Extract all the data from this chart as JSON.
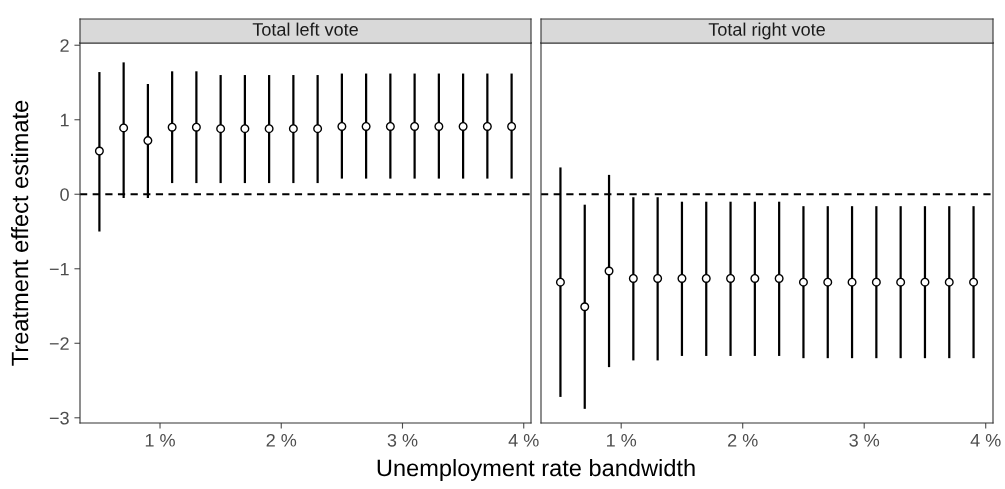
{
  "chart_data": [
    {
      "type": "scatter",
      "title": "Total left vote",
      "ylabel": "Treatment effect estimate",
      "xlabel": "Unemployment rate bandwidth",
      "x": [
        0.5,
        0.7,
        0.9,
        1.1,
        1.3,
        1.5,
        1.7,
        1.9,
        2.1,
        2.3,
        2.5,
        2.7,
        2.9,
        3.1,
        3.3,
        3.5,
        3.7,
        3.9
      ],
      "values": [
        0.58,
        0.89,
        0.72,
        0.9,
        0.9,
        0.88,
        0.88,
        0.88,
        0.88,
        0.88,
        0.91,
        0.91,
        0.91,
        0.91,
        0.91,
        0.91,
        0.91,
        0.91
      ],
      "errors": [
        [
          -0.5,
          1.64
        ],
        [
          -0.05,
          1.77
        ],
        [
          -0.05,
          1.48
        ],
        [
          0.15,
          1.65
        ],
        [
          0.15,
          1.65
        ],
        [
          0.15,
          1.6
        ],
        [
          0.15,
          1.6
        ],
        [
          0.15,
          1.6
        ],
        [
          0.15,
          1.6
        ],
        [
          0.15,
          1.6
        ],
        [
          0.21,
          1.62
        ],
        [
          0.21,
          1.62
        ],
        [
          0.21,
          1.62
        ],
        [
          0.21,
          1.62
        ],
        [
          0.21,
          1.62
        ],
        [
          0.21,
          1.62
        ],
        [
          0.21,
          1.62
        ],
        [
          0.21,
          1.62
        ]
      ],
      "color": "#000000",
      "marker": "circle",
      "xlim": [
        0.34,
        4.06
      ],
      "xticks": [
        {
          "value": 1,
          "label": "1 %"
        },
        {
          "value": 2,
          "label": "2 %"
        },
        {
          "value": 3,
          "label": "3 %"
        },
        {
          "value": 4,
          "label": "4 %"
        }
      ],
      "ylim": [
        -3.07,
        2.03
      ],
      "yticks": [
        {
          "value": -3,
          "label": "−3"
        },
        {
          "value": -2,
          "label": "−2"
        },
        {
          "value": -1,
          "label": "−1"
        },
        0,
        1,
        2
      ],
      "ref_lines": [
        {
          "axis": "y",
          "value": 0,
          "line_style": "dashed",
          "color": "#000000"
        }
      ],
      "grid": false
    },
    {
      "type": "scatter",
      "title": "Total right vote",
      "x": [
        0.5,
        0.7,
        0.9,
        1.1,
        1.3,
        1.5,
        1.7,
        1.9,
        2.1,
        2.3,
        2.5,
        2.7,
        2.9,
        3.1,
        3.3,
        3.5,
        3.7,
        3.9
      ],
      "values": [
        -1.18,
        -1.51,
        -1.03,
        -1.13,
        -1.13,
        -1.13,
        -1.13,
        -1.13,
        -1.13,
        -1.13,
        -1.18,
        -1.18,
        -1.18,
        -1.18,
        -1.18,
        -1.18,
        -1.18,
        -1.18
      ],
      "errors": [
        [
          -2.72,
          0.36
        ],
        [
          -2.88,
          -0.14
        ],
        [
          -2.32,
          0.26
        ],
        [
          -2.23,
          -0.04
        ],
        [
          -2.23,
          -0.04
        ],
        [
          -2.17,
          -0.1
        ],
        [
          -2.17,
          -0.1
        ],
        [
          -2.17,
          -0.1
        ],
        [
          -2.17,
          -0.1
        ],
        [
          -2.17,
          -0.1
        ],
        [
          -2.2,
          -0.16
        ],
        [
          -2.2,
          -0.16
        ],
        [
          -2.2,
          -0.16
        ],
        [
          -2.2,
          -0.16
        ],
        [
          -2.2,
          -0.16
        ],
        [
          -2.2,
          -0.16
        ],
        [
          -2.2,
          -0.16
        ],
        [
          -2.2,
          -0.16
        ]
      ],
      "color": "#000000",
      "marker": "circle",
      "xlim": [
        0.34,
        4.06
      ],
      "xticks": [
        {
          "value": 1,
          "label": "1 %"
        },
        {
          "value": 2,
          "label": "2 %"
        },
        {
          "value": 3,
          "label": "3 %"
        },
        {
          "value": 4,
          "label": "4 %"
        }
      ],
      "ylim": [
        -3.07,
        2.03
      ],
      "tick_labels": "x",
      "ref_lines": [
        {
          "axis": "y",
          "value": 0,
          "line_style": "dashed",
          "color": "#000000"
        }
      ],
      "grid": false
    }
  ]
}
